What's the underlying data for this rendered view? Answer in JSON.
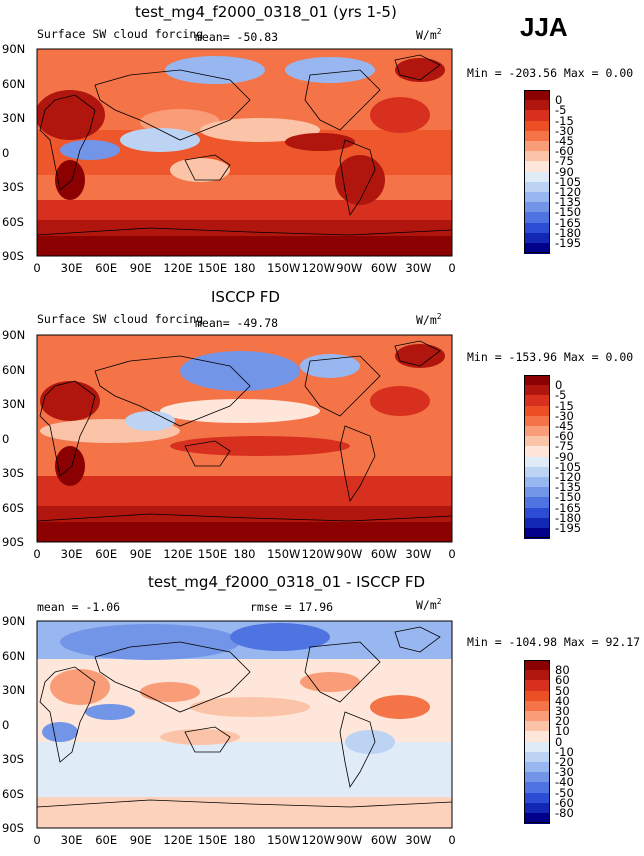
{
  "season": "JJA",
  "panels": [
    {
      "title": "test_mg4_f2000_0318_01 (yrs 1-5)",
      "left_label": "Surface SW cloud forcing",
      "center_label": "mean= -50.83",
      "units": "W/m",
      "units_sup": "2",
      "minmax": "Min = -203.56 Max =   0.00",
      "colorbar": {
        "labels": [
          "0",
          "-5",
          "-15",
          "-30",
          "-45",
          "-60",
          "-75",
          "-90",
          "-105",
          "-120",
          "-135",
          "-150",
          "-165",
          "-180",
          "-195"
        ],
        "colors": [
          "#8b0000",
          "#b0150e",
          "#d7301f",
          "#ec4f24",
          "#f47347",
          "#f99c78",
          "#fbc4a8",
          "#fee7da",
          "#e0ebf8",
          "#bcd3f4",
          "#98b6ef",
          "#7395e8",
          "#4f73e0",
          "#2b4cd3",
          "#1227b3",
          "#00008a"
        ]
      }
    },
    {
      "title": "ISCCP FD",
      "left_label": "Surface SW cloud forcing",
      "center_label": "mean= -49.78",
      "units": "W/m",
      "units_sup": "2",
      "minmax": "Min = -153.96 Max =   0.00",
      "colorbar": {
        "labels": [
          "0",
          "-5",
          "-15",
          "-30",
          "-45",
          "-60",
          "-75",
          "-90",
          "-105",
          "-120",
          "-135",
          "-150",
          "-165",
          "-180",
          "-195"
        ],
        "colors": [
          "#8b0000",
          "#b0150e",
          "#d7301f",
          "#ec4f24",
          "#f47347",
          "#f99c78",
          "#fbc4a8",
          "#fee7da",
          "#e0ebf8",
          "#bcd3f4",
          "#98b6ef",
          "#7395e8",
          "#4f73e0",
          "#2b4cd3",
          "#1227b3",
          "#00008a"
        ]
      }
    },
    {
      "title": "test_mg4_f2000_0318_01 - ISCCP FD",
      "left_label": "mean =  -1.06",
      "center_label": "rmse =  17.96",
      "units": "W/m",
      "units_sup": "2",
      "minmax": "Min = -104.98 Max =  92.17",
      "colorbar": {
        "labels": [
          "80",
          "60",
          "50",
          "40",
          "30",
          "20",
          "10",
          "0",
          "-10",
          "-20",
          "-30",
          "-40",
          "-50",
          "-60",
          "-80"
        ],
        "colors": [
          "#8b0000",
          "#b0150e",
          "#d7301f",
          "#ec4f24",
          "#f47347",
          "#f99c78",
          "#fbc4a8",
          "#fee7da",
          "#e0ebf8",
          "#bcd3f4",
          "#98b6ef",
          "#7395e8",
          "#4f73e0",
          "#2b4cd3",
          "#1227b3",
          "#00008a"
        ]
      }
    }
  ],
  "lat_ticks": [
    "90N",
    "60N",
    "30N",
    "0",
    "30S",
    "60S",
    "90S"
  ],
  "lon_ticks": [
    "0",
    "30E",
    "60E",
    "90E",
    "120E",
    "150E",
    "180",
    "150W",
    "120W",
    "90W",
    "60W",
    "30W",
    "0"
  ]
}
